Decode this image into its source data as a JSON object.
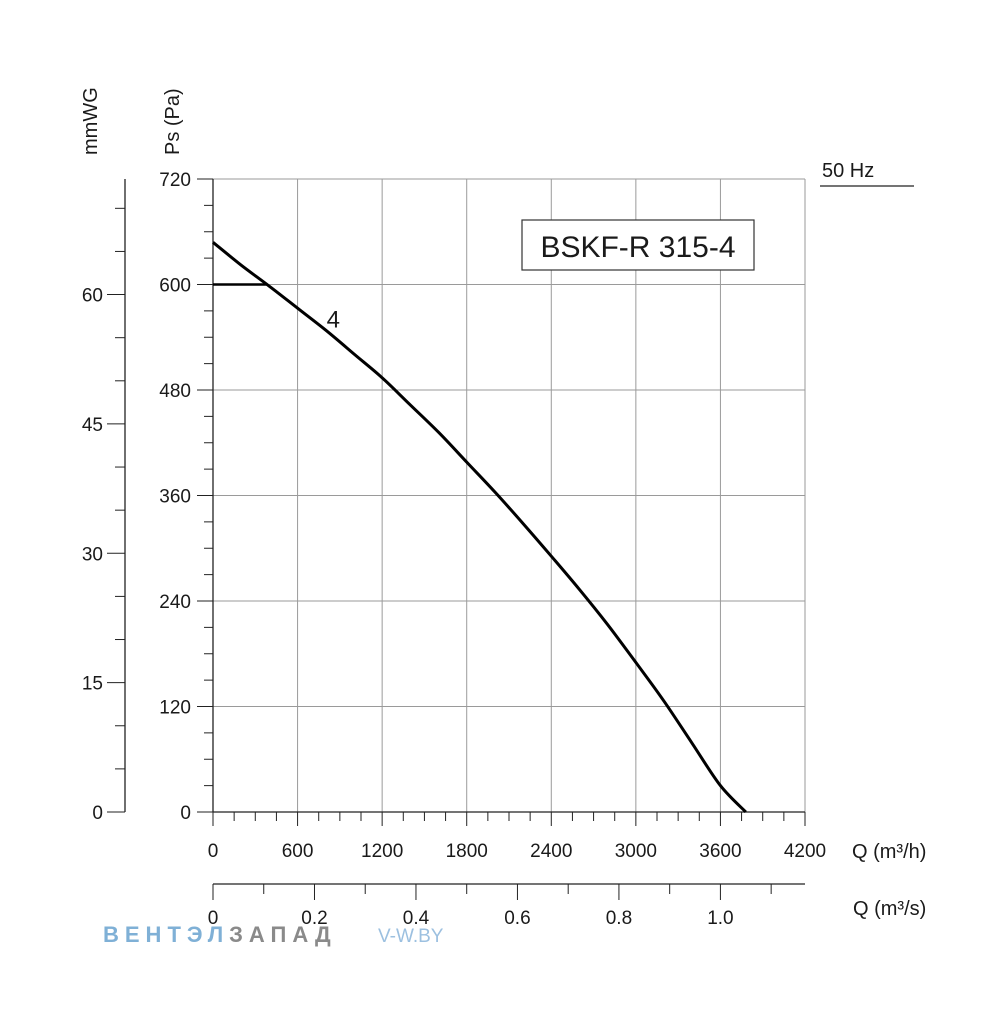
{
  "chart_data": {
    "type": "line",
    "title": "BSKF-R 315-4",
    "frequency_label": "50 Hz",
    "x": {
      "label": "Q (m³/h)",
      "range": [
        0,
        4200
      ],
      "ticks": [
        0,
        600,
        1200,
        1800,
        2400,
        3000,
        3600,
        4200
      ],
      "tick_labels": [
        "0",
        "600",
        "1200",
        "1800",
        "2400",
        "3000",
        "3600",
        "4200"
      ]
    },
    "x2": {
      "label": "Q (m³/s)",
      "range": [
        0,
        1.1667
      ],
      "ticks": [
        0,
        0.2,
        0.4,
        0.6,
        0.8,
        1.0
      ],
      "tick_labels": [
        "0",
        "0.2",
        "0.4",
        "0.6",
        "0.8",
        "1.0"
      ]
    },
    "y": {
      "label": "Ps (Pa)",
      "range": [
        0,
        720
      ],
      "ticks": [
        0,
        120,
        240,
        360,
        480,
        600,
        720
      ],
      "tick_labels": [
        "0",
        "120",
        "240",
        "360",
        "480",
        "600",
        "720"
      ]
    },
    "y2": {
      "label": "mmWG",
      "range": [
        0,
        73.4
      ],
      "ticks": [
        0,
        15,
        30,
        45,
        60
      ],
      "tick_labels": [
        "0",
        "15",
        "30",
        "45",
        "60"
      ]
    },
    "grid": true,
    "series": [
      {
        "name": "4",
        "color": "#000000",
        "x": [
          0,
          200,
          400,
          600,
          800,
          1000,
          1200,
          1400,
          1600,
          1800,
          2000,
          2200,
          2400,
          2600,
          2800,
          3000,
          3200,
          3400,
          3600,
          3780
        ],
        "y": [
          648,
          622,
          598,
          573,
          548,
          521,
          494,
          463,
          432,
          398,
          364,
          328,
          291,
          253,
          213,
          170,
          126,
          78,
          30,
          0
        ]
      }
    ],
    "annotations": [
      {
        "text": "4",
        "x": 910,
        "y": 560
      }
    ],
    "reference_segment": {
      "x": [
        0,
        380
      ],
      "y": [
        600,
        600
      ]
    }
  },
  "watermark": {
    "brand_part1": "ВЕНТЭЛ",
    "brand_part2": "ЗАПАД",
    "site_prefix": "V-",
    "site_rest": "W.BY",
    "colors": {
      "part1": "#7fb0d6",
      "part2": "#8a8a8a",
      "site": "#9cc0e0"
    }
  }
}
